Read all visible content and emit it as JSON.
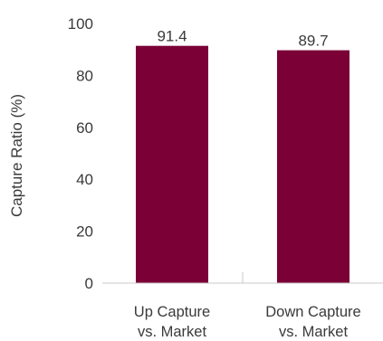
{
  "chart_data": {
    "type": "bar",
    "categories": [
      [
        "Up Capture",
        "vs. Market"
      ],
      [
        "Down Capture",
        "vs. Market"
      ]
    ],
    "values": [
      91.4,
      89.7
    ],
    "value_labels": [
      "91.4",
      "89.7"
    ],
    "ylabel": "Capture Ratio (%)",
    "xlabel": "",
    "ylim": [
      0,
      100
    ],
    "yticks": [
      "0",
      "20",
      "40",
      "60",
      "80",
      "100"
    ],
    "grid": false,
    "bar_color": "#7a0036"
  }
}
